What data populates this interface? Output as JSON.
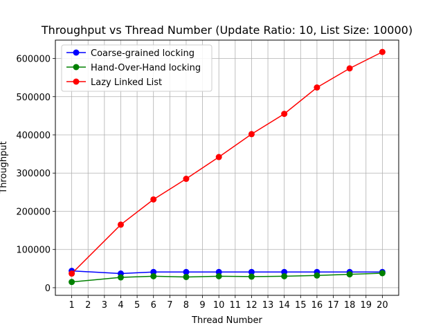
{
  "chart_data": {
    "type": "line",
    "title": "Throughput vs Thread Number (Update Ratio: 10, List Size: 10000)",
    "xlabel": "Thread Number",
    "ylabel": "Throughput",
    "xticks": [
      1,
      2,
      3,
      4,
      5,
      6,
      7,
      8,
      9,
      10,
      11,
      12,
      13,
      14,
      15,
      16,
      17,
      18,
      19,
      20
    ],
    "yticks": [
      0,
      100000,
      200000,
      300000,
      400000,
      500000,
      600000
    ],
    "xlim": [
      0,
      21
    ],
    "ylim": [
      -20000,
      648000
    ],
    "grid": true,
    "legend_position": "top-left",
    "x": [
      1,
      4,
      6,
      8,
      10,
      12,
      14,
      16,
      18,
      20
    ],
    "series": [
      {
        "name": "Coarse-grained locking",
        "color": "#0000ff",
        "values": [
          44000,
          37000,
          41000,
          41000,
          41000,
          41000,
          41000,
          41000,
          41000,
          41000
        ]
      },
      {
        "name": "Hand-Over-Hand locking",
        "color": "#008000",
        "values": [
          15000,
          27000,
          30000,
          28000,
          30000,
          29000,
          30000,
          32000,
          35000,
          38000
        ]
      },
      {
        "name": "Lazy Linked List",
        "color": "#ff0000",
        "values": [
          37000,
          165000,
          231000,
          285000,
          342000,
          402000,
          455000,
          524000,
          574000,
          617000
        ]
      }
    ]
  }
}
